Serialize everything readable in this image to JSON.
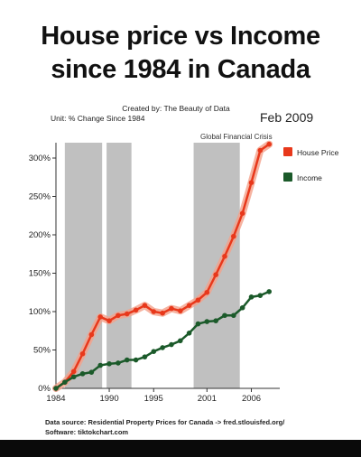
{
  "title_line1": "House price vs Income",
  "title_line2": "since 1984 in Canada",
  "credit": "Created by: The Beauty of Data",
  "unit": "Unit: % Change Since 1984",
  "date_label": "Feb 2009",
  "annotation": "Global Financial Crisis",
  "footer_line1": "Data source: Residential Property Prices for Canada -> fred.stlouisfed.org/",
  "footer_line2": "Software: tiktokchart.com",
  "colors": {
    "house": "#e8381b",
    "house_fill": "#f4a08a",
    "income": "#1b5a2a",
    "recession": "#b5b5b5"
  },
  "chart_data": {
    "type": "line",
    "title": "House price vs Income since 1984 in Canada",
    "ylabel": "% Change Since 1984",
    "x_ticks": [
      "1984",
      "1990",
      "1995",
      "2001",
      "2006"
    ],
    "y_ticks": [
      "0%",
      "50%",
      "100%",
      "150%",
      "200%",
      "250%",
      "300%"
    ],
    "xlim": [
      1984,
      2009.2
    ],
    "ylim": [
      0,
      320
    ],
    "grid": false,
    "legend": "right",
    "shaded_periods": [
      [
        1985.0,
        1989.2
      ],
      [
        1989.7,
        1992.5
      ],
      [
        1999.5,
        2004.7
      ]
    ],
    "series": [
      {
        "name": "House Price",
        "x": [
          1984,
          1985,
          1986,
          1987,
          1988,
          1989,
          1990,
          1991,
          1992,
          1993,
          1994,
          1995,
          1996,
          1997,
          1998,
          1999,
          2000,
          2001,
          2002,
          2003,
          2004,
          2005,
          2006,
          2007,
          2008
        ],
        "values": [
          0,
          8,
          22,
          45,
          70,
          93,
          88,
          95,
          97,
          102,
          108,
          100,
          98,
          104,
          101,
          108,
          115,
          125,
          148,
          172,
          198,
          228,
          268,
          310,
          318
        ]
      },
      {
        "name": "Income",
        "x": [
          1984,
          1985,
          1986,
          1987,
          1988,
          1989,
          1990,
          1991,
          1992,
          1993,
          1994,
          1995,
          1996,
          1997,
          1998,
          1999,
          2000,
          2001,
          2002,
          2003,
          2004,
          2005,
          2006,
          2007,
          2008
        ],
        "values": [
          0,
          8,
          15,
          19,
          21,
          30,
          32,
          33,
          37,
          37,
          41,
          48,
          53,
          57,
          62,
          72,
          84,
          87,
          88,
          95,
          95,
          105,
          119,
          121,
          126
        ]
      }
    ]
  }
}
